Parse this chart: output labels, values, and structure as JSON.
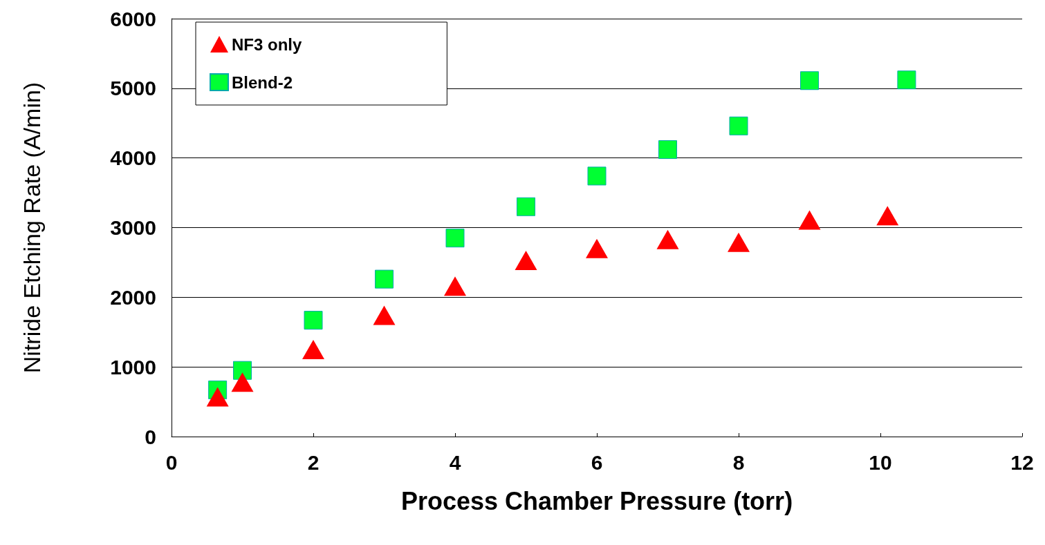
{
  "chart_data": {
    "type": "scatter",
    "xlabel": "Process Chamber Pressure (torr)",
    "ylabel": "Nitride Etching Rate (A/min)",
    "xlim": [
      0,
      12
    ],
    "xticks": [
      0,
      2,
      4,
      6,
      8,
      10,
      12
    ],
    "ylim": [
      0,
      6000
    ],
    "yticks": [
      0,
      1000,
      2000,
      3000,
      4000,
      5000,
      6000
    ],
    "grid": "y",
    "legend": "top left",
    "series": [
      {
        "name": "NF3 only",
        "color": "#ff0000",
        "marker": "triangle",
        "x": [
          0.65,
          1,
          2,
          3,
          4,
          5,
          6,
          7,
          8,
          9,
          10.1
        ],
        "values": [
          570,
          780,
          1250,
          1740,
          2160,
          2530,
          2700,
          2830,
          2790,
          3110,
          3170
        ]
      },
      {
        "name": "Blend-2",
        "color": "#00ff33",
        "marker": "square",
        "x": [
          0.65,
          1,
          2,
          3,
          4,
          5,
          6,
          7,
          8,
          9,
          10.37
        ],
        "values": [
          670,
          950,
          1670,
          2260,
          2850,
          3300,
          3740,
          4120,
          4460,
          5110,
          5120
        ]
      }
    ]
  }
}
